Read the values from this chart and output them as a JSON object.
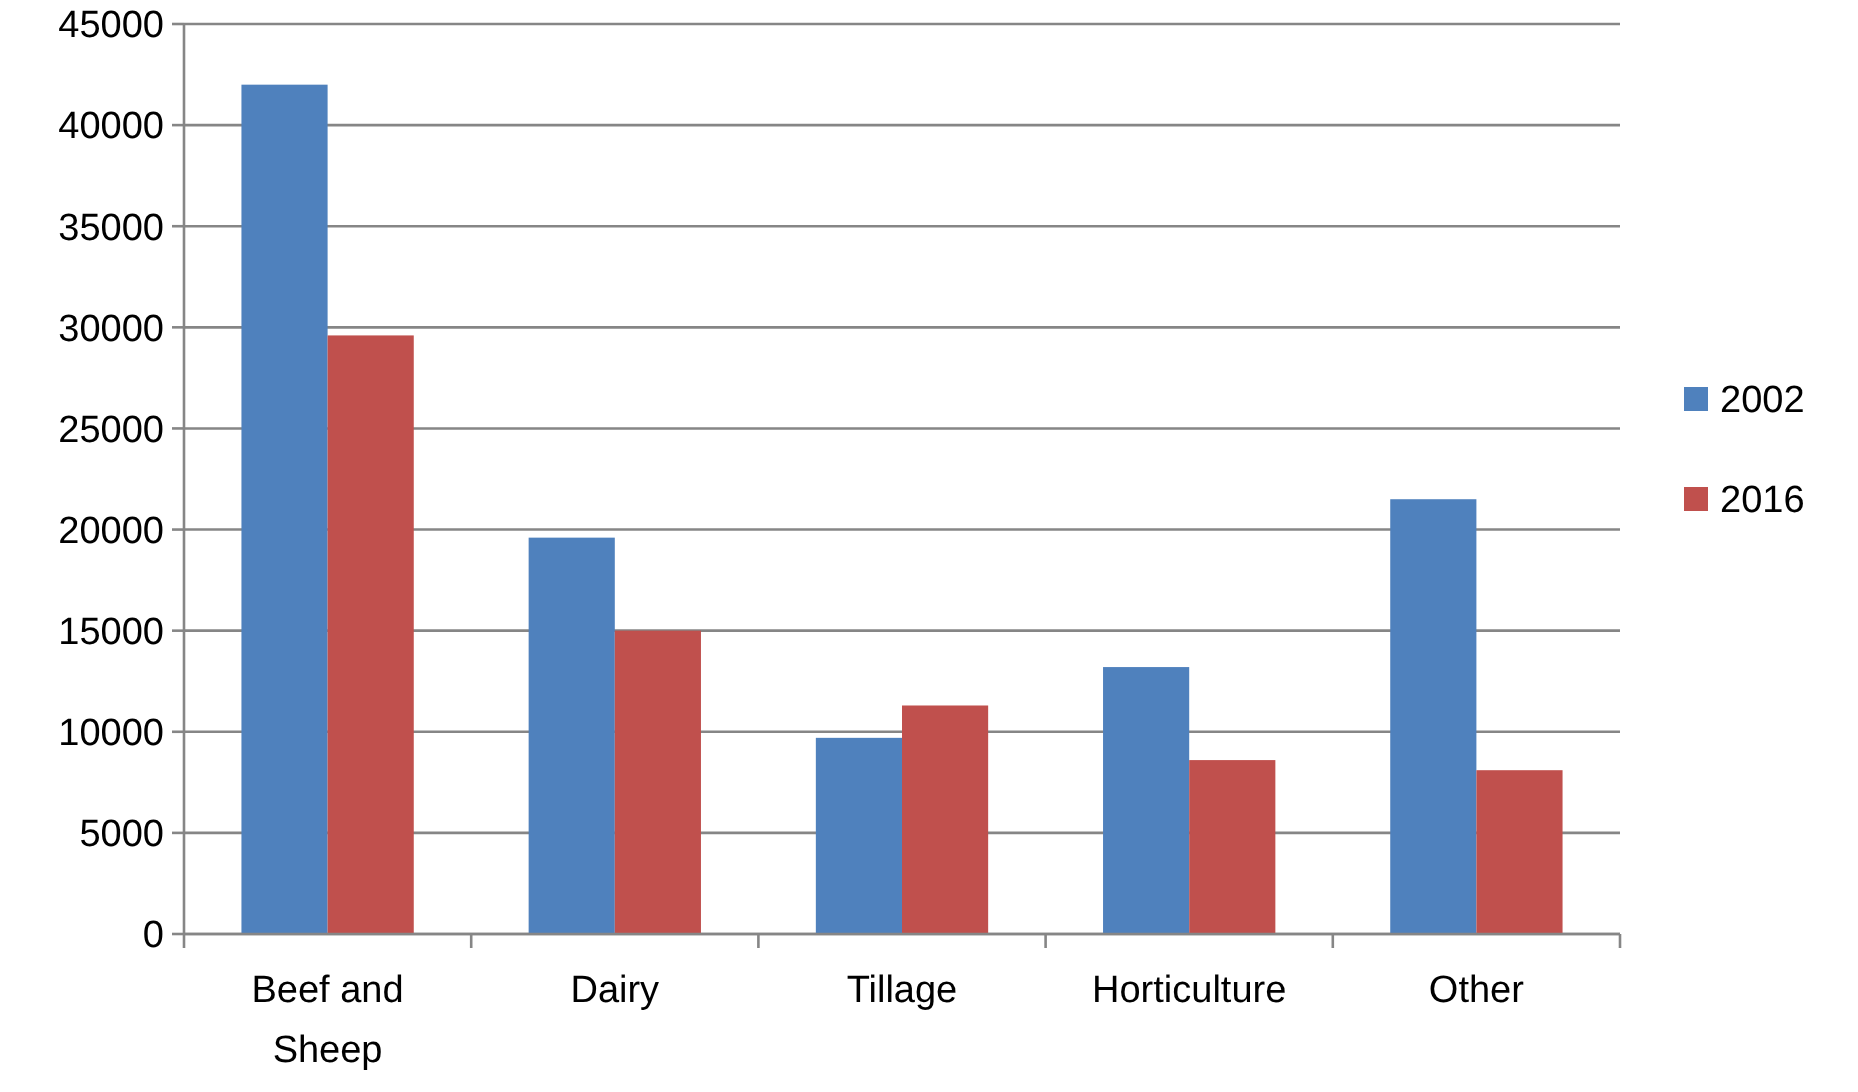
{
  "chart_data": {
    "type": "bar",
    "categories": [
      "Beef and Sheep",
      "Dairy",
      "Tillage",
      "Horticulture",
      "Other"
    ],
    "series": [
      {
        "name": "2002",
        "color": "#4f81bd",
        "values": [
          42000,
          19600,
          9700,
          13200,
          21500
        ]
      },
      {
        "name": "2016",
        "color": "#c0504d",
        "values": [
          29600,
          15000,
          11300,
          8600,
          8100
        ]
      }
    ],
    "ylim": [
      0,
      45000
    ],
    "yticks": [
      0,
      5000,
      10000,
      15000,
      20000,
      25000,
      30000,
      35000,
      40000,
      45000
    ],
    "grid": "y",
    "legend": "right"
  }
}
